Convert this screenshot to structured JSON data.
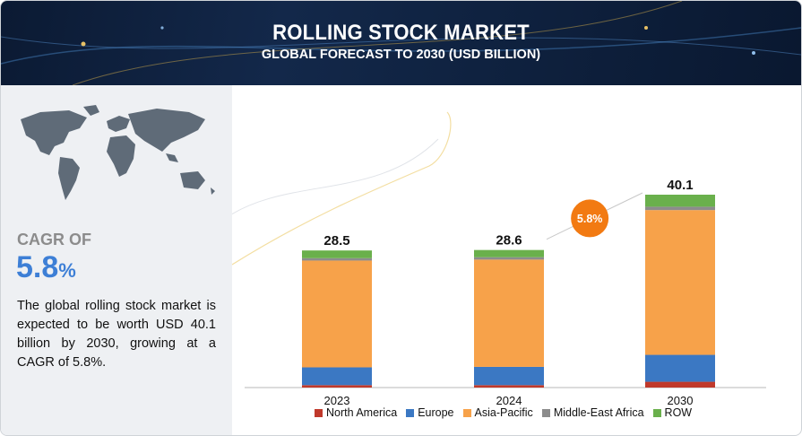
{
  "header": {
    "title": "ROLLING STOCK MARKET",
    "subtitle": "GLOBAL FORECAST TO 2030 (USD BILLION)"
  },
  "summary": {
    "cagr_label": "CAGR OF",
    "cagr_number": "5.8",
    "cagr_percent": "%",
    "description": "The global rolling stock market is expected to be worth USD 40.1 billion by 2030, growing at a CAGR of 5.8%."
  },
  "chart_data": {
    "type": "bar",
    "stacked": true,
    "title": "ROLLING STOCK MARKET",
    "subtitle": "GLOBAL FORECAST TO 2030 (USD BILLION)",
    "categories": [
      "2023",
      "2024",
      "2030"
    ],
    "totals": [
      28.5,
      28.6,
      40.1
    ],
    "total_labels": [
      "28.5",
      "28.6",
      "40.1"
    ],
    "series": [
      {
        "name": "North America",
        "color": "#c0392b",
        "values": [
          0.5,
          0.5,
          1.2
        ]
      },
      {
        "name": "Europe",
        "color": "#3b78c3",
        "values": [
          3.7,
          3.8,
          5.6
        ]
      },
      {
        "name": "Asia-Pacific",
        "color": "#f7a24a",
        "values": [
          22.2,
          22.3,
          30.1
        ]
      },
      {
        "name": "Middle-East Africa",
        "color": "#8c8c8c",
        "values": [
          0.5,
          0.5,
          0.7
        ]
      },
      {
        "name": "ROW",
        "color": "#6ab04c",
        "values": [
          1.6,
          1.5,
          2.5
        ]
      }
    ],
    "growth_badge": {
      "label": "5.8%",
      "color": "#f27a12"
    },
    "grid": false,
    "legend_position": "bottom",
    "xlabel": "",
    "ylabel": "",
    "ylim": [
      0,
      40.1
    ]
  }
}
